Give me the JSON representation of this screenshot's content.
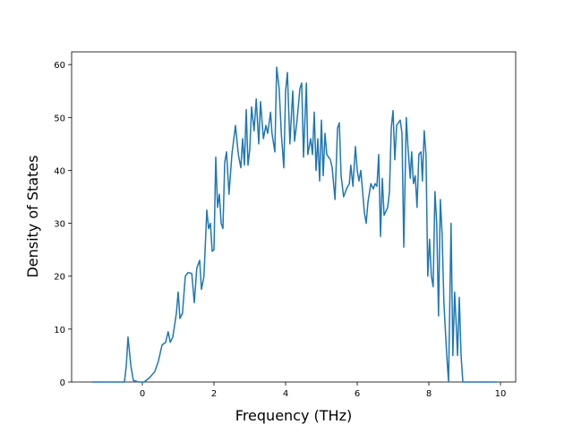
{
  "chart_data": {
    "type": "line",
    "x_label": "Frequency (THz)",
    "y_label": "Density of States",
    "x": [
      -1.4,
      -0.5,
      -0.45,
      -0.4,
      -0.32,
      -0.25,
      -0.1,
      0.05,
      0.2,
      0.35,
      0.45,
      0.55,
      0.65,
      0.72,
      0.78,
      0.85,
      0.95,
      1.0,
      1.05,
      1.12,
      1.2,
      1.28,
      1.38,
      1.45,
      1.52,
      1.6,
      1.65,
      1.72,
      1.8,
      1.85,
      1.9,
      1.95,
      2.0,
      2.05,
      2.1,
      2.15,
      2.2,
      2.25,
      2.3,
      2.35,
      2.42,
      2.5,
      2.6,
      2.68,
      2.75,
      2.8,
      2.85,
      2.9,
      2.95,
      3.0,
      3.05,
      3.12,
      3.18,
      3.25,
      3.3,
      3.38,
      3.45,
      3.5,
      3.58,
      3.62,
      3.7,
      3.75,
      3.82,
      3.88,
      3.95,
      4.0,
      4.05,
      4.12,
      4.2,
      4.25,
      4.32,
      4.4,
      4.45,
      4.5,
      4.58,
      4.62,
      4.7,
      4.75,
      4.8,
      4.85,
      4.9,
      4.95,
      5.0,
      5.05,
      5.1,
      5.15,
      5.25,
      5.3,
      5.38,
      5.45,
      5.5,
      5.55,
      5.62,
      5.7,
      5.78,
      5.82,
      5.88,
      5.95,
      6.0,
      6.05,
      6.1,
      6.15,
      6.2,
      6.25,
      6.3,
      6.38,
      6.45,
      6.5,
      6.55,
      6.6,
      6.65,
      6.7,
      6.75,
      6.85,
      6.9,
      6.95,
      7.0,
      7.05,
      7.1,
      7.15,
      7.2,
      7.25,
      7.3,
      7.37,
      7.42,
      7.48,
      7.52,
      7.57,
      7.62,
      7.67,
      7.72,
      7.78,
      7.82,
      7.87,
      7.92,
      7.97,
      8.02,
      8.07,
      8.12,
      8.17,
      8.22,
      8.27,
      8.32,
      8.37,
      8.42,
      8.5,
      8.55,
      8.62,
      8.67,
      8.72,
      8.77,
      8.8,
      8.85,
      8.9,
      8.95,
      9.9
    ],
    "series": [
      {
        "color": "#1f77b4",
        "values": [
          0,
          0,
          3,
          8.5,
          3,
          0.3,
          0,
          0,
          0.8,
          2,
          4,
          7,
          7.5,
          9.5,
          7.5,
          8.5,
          13,
          17,
          12,
          13,
          20,
          20.7,
          20.5,
          15,
          21.5,
          23,
          17.5,
          20,
          32.5,
          29,
          30,
          24.7,
          25,
          42.5,
          33,
          35.5,
          30,
          29,
          41.5,
          43.5,
          35.5,
          43,
          48.5,
          43,
          40.5,
          46,
          41,
          51.5,
          41,
          44,
          52,
          47.5,
          53.5,
          45,
          53,
          46,
          48.5,
          47,
          51,
          47,
          43.5,
          59.5,
          55.5,
          47,
          40.5,
          55,
          58.5,
          45,
          55,
          45.5,
          49.5,
          55.5,
          56.5,
          42.5,
          56.5,
          43,
          46,
          43,
          51,
          40,
          46,
          38,
          49.5,
          39,
          47,
          43,
          42,
          40.5,
          34.5,
          48,
          49,
          39,
          35,
          36.5,
          37.5,
          41,
          37,
          44.5,
          40,
          38,
          40,
          36,
          32,
          30,
          34,
          37.5,
          36.5,
          37.5,
          37,
          43,
          27.5,
          38.5,
          31.5,
          33,
          36,
          48,
          51.3,
          42,
          48.5,
          49,
          49.5,
          47,
          25.5,
          50,
          44,
          38.5,
          43.5,
          37.5,
          39,
          33,
          43,
          43.5,
          38,
          47.5,
          43,
          20,
          27,
          20,
          18,
          36,
          30,
          12.5,
          34.5,
          28,
          15,
          5,
          0,
          30,
          5,
          17,
          10,
          5,
          16,
          5,
          0,
          0
        ]
      }
    ],
    "xlim": [
      -1.975,
      10.425
    ],
    "ylim": [
      0,
      62.4
    ],
    "xticks": [
      0,
      2,
      4,
      6,
      8,
      10
    ],
    "yticks": [
      0,
      10,
      20,
      30,
      40,
      50,
      60
    ]
  }
}
